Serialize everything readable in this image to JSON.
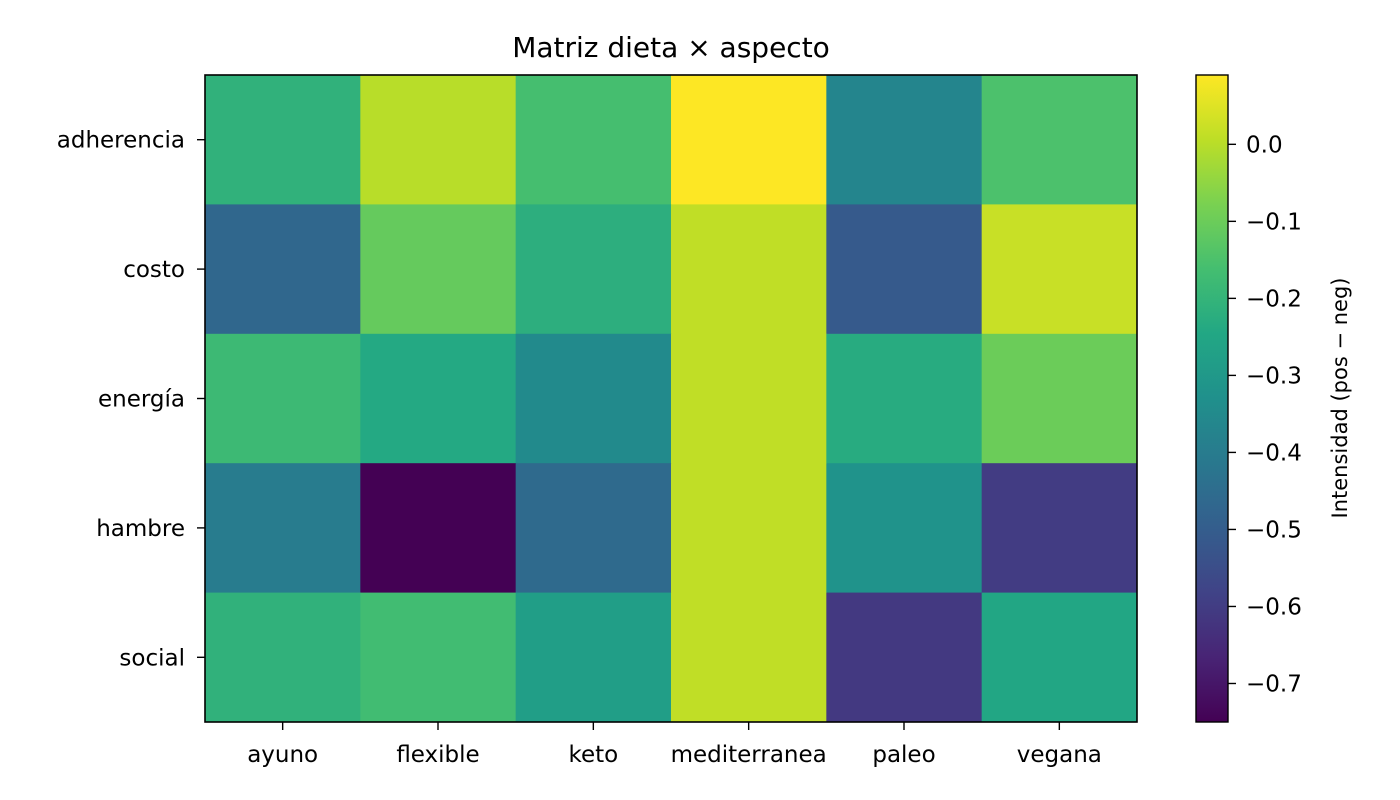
{
  "chart_data": {
    "type": "heatmap",
    "title": "Matriz dieta × aspecto",
    "columns": [
      "ayuno",
      "flexible",
      "keto",
      "mediterranea",
      "paleo",
      "vegana"
    ],
    "rows": [
      "adherencia",
      "costo",
      "energía",
      "hambre",
      "social"
    ],
    "values": [
      [
        -0.21,
        0.0,
        -0.16,
        0.09,
        -0.37,
        -0.15
      ],
      [
        -0.47,
        -0.11,
        -0.22,
        0.01,
        -0.51,
        0.02
      ],
      [
        -0.18,
        -0.24,
        -0.35,
        0.01,
        -0.23,
        -0.1
      ],
      [
        -0.4,
        -0.75,
        -0.46,
        0.01,
        -0.32,
        -0.6
      ],
      [
        -0.21,
        -0.17,
        -0.28,
        0.01,
        -0.61,
        -0.25
      ]
    ],
    "colorbar": {
      "label": "Intensidad (pos − neg)",
      "min": -0.75,
      "max": 0.09,
      "ticks": [
        0.0,
        -0.1,
        -0.2,
        -0.3,
        -0.4,
        -0.5,
        -0.6,
        -0.7
      ],
      "tick_labels": [
        "0.0",
        "−0.1",
        "−0.2",
        "−0.3",
        "−0.4",
        "−0.5",
        "−0.6",
        "−0.7"
      ],
      "colormap": "viridis"
    },
    "grid": false
  }
}
